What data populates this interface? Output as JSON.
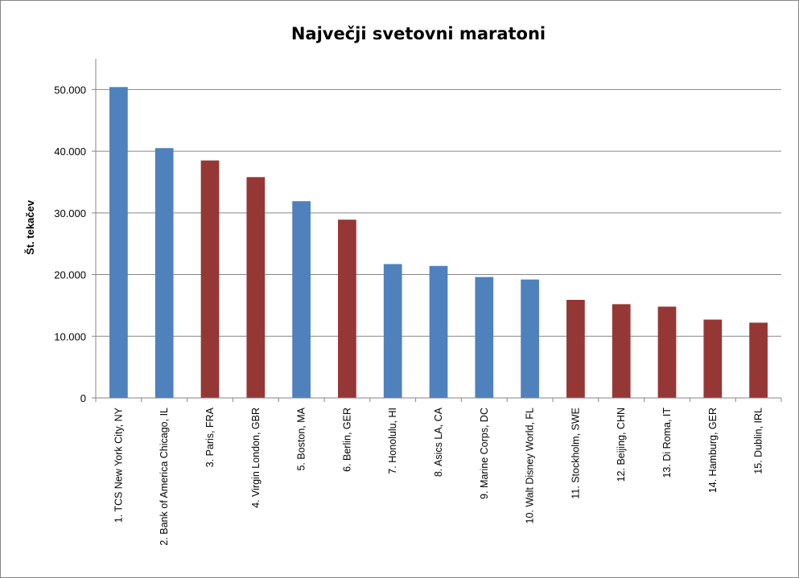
{
  "chart_data": {
    "type": "bar",
    "title": "Največji svetovni maratoni",
    "xlabel": "",
    "ylabel": "Št. tekačev",
    "ylim": [
      0,
      55000
    ],
    "yticks": [
      {
        "value": 0,
        "label": "0"
      },
      {
        "value": 10000,
        "label": "10.000"
      },
      {
        "value": 20000,
        "label": "20.000"
      },
      {
        "value": 30000,
        "label": "30.000"
      },
      {
        "value": 40000,
        "label": "40.000"
      },
      {
        "value": 50000,
        "label": "50.000"
      }
    ],
    "grid": true,
    "legend": "none",
    "colors": {
      "usa": "#4f81bd",
      "other": "#953735"
    },
    "categories": [
      "1. TCS New York City, NY",
      "2. Bank of America Chicago, IL",
      "3. Paris, FRA",
      "4. Virgin London, GBR",
      "5. Boston, MA",
      "6. Berlin, GER",
      "7. Honolulu, HI",
      "8. Asics LA, CA",
      "9. Marine Corps, DC",
      "10. Walt Disney World, FL",
      "11. Stockholm, SWE",
      "12. Beijing, CHN",
      "13. Di Roma, IT",
      "14. Hamburg, GER",
      "15. Dublin, IRL"
    ],
    "values": [
      50400,
      40500,
      38500,
      35800,
      31900,
      28900,
      21700,
      21400,
      19600,
      19200,
      15900,
      15200,
      14800,
      12700,
      12200
    ],
    "bar_colors": [
      "#4f81bd",
      "#4f81bd",
      "#953735",
      "#953735",
      "#4f81bd",
      "#953735",
      "#4f81bd",
      "#4f81bd",
      "#4f81bd",
      "#4f81bd",
      "#953735",
      "#953735",
      "#953735",
      "#953735",
      "#953735"
    ]
  }
}
